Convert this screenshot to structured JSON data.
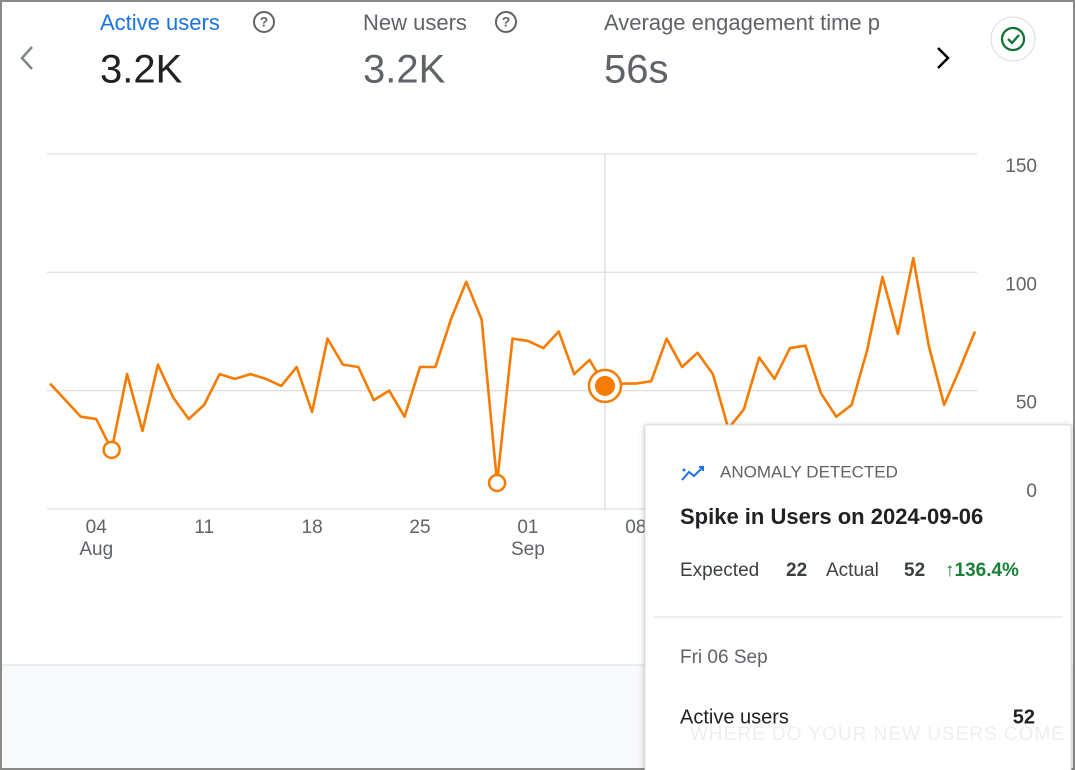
{
  "metrics": [
    {
      "label": "Active users",
      "value": "3.2K"
    },
    {
      "label": "New users",
      "value": "3.2K"
    },
    {
      "label": "Average engagement time p",
      "value": "56s"
    }
  ],
  "chart_data": {
    "type": "line",
    "color": "#f57c00",
    "categories": [
      null,
      null,
      null,
      {
        "day": "04",
        "month": "Aug"
      },
      null,
      null,
      null,
      null,
      null,
      null,
      "11",
      null,
      null,
      null,
      null,
      null,
      null,
      "18",
      null,
      null,
      null,
      null,
      null,
      null,
      "25",
      null,
      null,
      null,
      null,
      null,
      null,
      {
        "day": "01",
        "month": "Sep"
      },
      null,
      null,
      null,
      null,
      null,
      null,
      "08",
      null,
      null,
      null,
      null,
      null,
      null,
      null,
      null,
      null,
      null,
      null,
      null,
      null,
      null,
      null,
      null,
      null,
      null,
      null,
      null,
      null,
      null
    ],
    "values": [
      53,
      46,
      39,
      38,
      25,
      57,
      33,
      61,
      47,
      38,
      44,
      57,
      55,
      57,
      55,
      52,
      60,
      41,
      72,
      61,
      60,
      46,
      50,
      39,
      60,
      60,
      80,
      96,
      80,
      11,
      72,
      71,
      68,
      75,
      57,
      63,
      52,
      53,
      53,
      54,
      72,
      60,
      66,
      57,
      34,
      42,
      64,
      55,
      68,
      69,
      49,
      39,
      44,
      67,
      98,
      74,
      106,
      69,
      44,
      59,
      75
    ],
    "ylim": [
      0,
      150
    ],
    "yticks": [
      0,
      50,
      100,
      150
    ],
    "grid": true,
    "anomaly_points": [
      4,
      29
    ],
    "highlight_point": 36
  },
  "tooltip": {
    "badge": "ANOMALY DETECTED",
    "title": "Spike in Users on 2024-09-06",
    "expected_label": "Expected",
    "expected": 22,
    "actual_label": "Actual",
    "actual": 52,
    "change": "↑136.4%",
    "date": "Fri 06 Sep",
    "metric": "Active users",
    "metric_value": 52
  },
  "footer_text": "WHERE DO YOUR NEW USERS COME"
}
